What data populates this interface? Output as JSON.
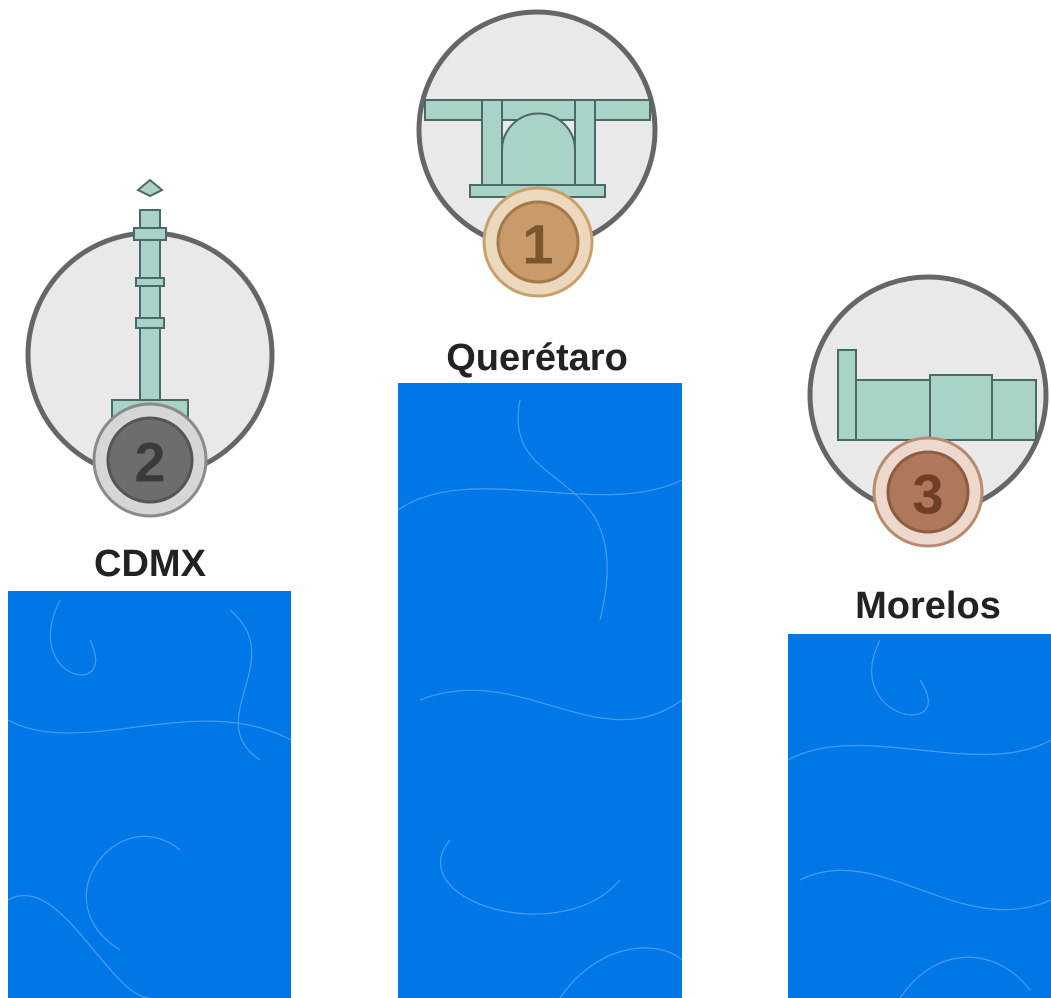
{
  "podium": {
    "places": [
      {
        "rank": "2",
        "name": "CDMX"
      },
      {
        "rank": "1",
        "name": "Querétaro"
      },
      {
        "rank": "3",
        "name": "Morelos"
      }
    ]
  }
}
